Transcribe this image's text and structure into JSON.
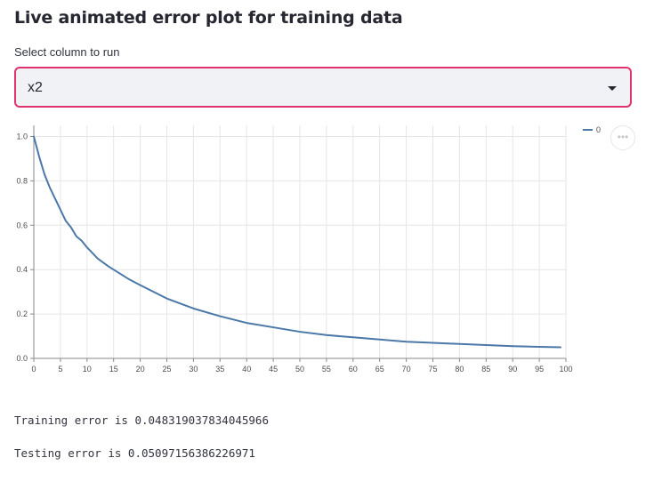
{
  "page": {
    "title": "Live animated error plot for training data"
  },
  "select": {
    "label": "Select column to run",
    "value": "x2"
  },
  "chart_menu": {
    "icon": "more-horizontal-icon",
    "glyph": "•••"
  },
  "chart_data": {
    "type": "line",
    "title": "",
    "xlabel": "",
    "ylabel": "",
    "xlim": [
      0,
      100
    ],
    "ylim": [
      0,
      1.05
    ],
    "x_ticks": [
      0,
      5,
      10,
      15,
      20,
      25,
      30,
      35,
      40,
      45,
      50,
      55,
      60,
      65,
      70,
      75,
      80,
      85,
      90,
      95,
      100
    ],
    "y_ticks": [
      0.0,
      0.2,
      0.4,
      0.6,
      0.8,
      1.0
    ],
    "grid": true,
    "legend": "top-right",
    "series": [
      {
        "name": "0",
        "color": "#4c78a8",
        "x": [
          0,
          1,
          2,
          3,
          4,
          5,
          6,
          7,
          8,
          9,
          10,
          12,
          14,
          16,
          18,
          20,
          25,
          30,
          35,
          40,
          45,
          50,
          55,
          60,
          65,
          70,
          75,
          80,
          85,
          90,
          95,
          99
        ],
        "values": [
          1.0,
          0.91,
          0.83,
          0.77,
          0.72,
          0.67,
          0.62,
          0.59,
          0.55,
          0.53,
          0.5,
          0.45,
          0.415,
          0.385,
          0.355,
          0.33,
          0.27,
          0.225,
          0.19,
          0.16,
          0.14,
          0.12,
          0.105,
          0.095,
          0.085,
          0.075,
          0.07,
          0.065,
          0.06,
          0.055,
          0.052,
          0.05
        ]
      }
    ]
  },
  "results": {
    "training": "Training error is 0.048319037834045966",
    "testing": "Testing error is 0.05097156386226971"
  }
}
